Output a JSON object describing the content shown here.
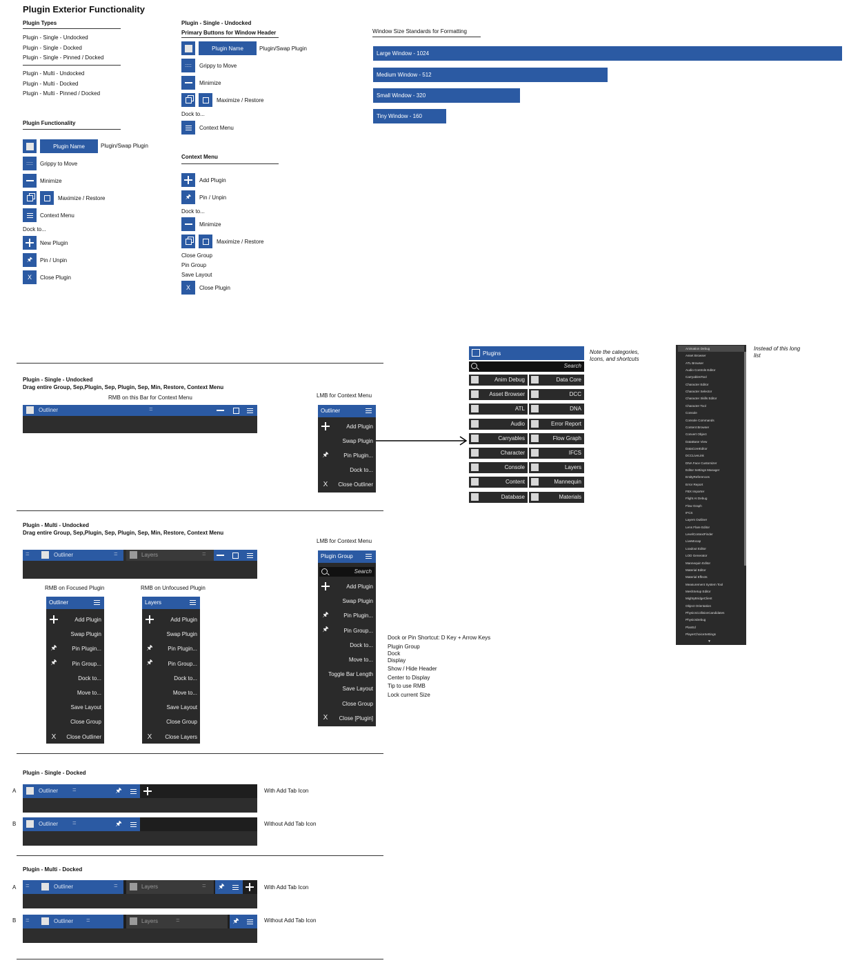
{
  "title": "Plugin Exterior Functionality",
  "plugin_types": {
    "heading": "Plugin Types",
    "group1": [
      "Plugin - Single - Undocked",
      "Plugin - Single - Docked",
      "Plugin - Single - Pinned / Docked"
    ],
    "group2": [
      "Plugin - Multi - Undocked",
      "Plugin - Multi - Docked",
      "Plugin - Multi - Pinned / Docked"
    ]
  },
  "functionality": {
    "heading": "Plugin Functionality",
    "plugin_name": "Plugin Name",
    "swap_label": "Plugin/Swap Plugin",
    "grippy": "Grippy to Move",
    "minimize": "Minimize",
    "maximize": "Maximize / Restore",
    "context_menu": "Context Menu",
    "dock_to": "Dock to...",
    "new_plugin": "New Plugin",
    "pin": "Pin / Unpin",
    "close_plugin": "Close Plugin",
    "x": "X"
  },
  "single_undocked_col": {
    "heading": "Plugin - Single - Undocked",
    "subheading": "Primary Buttons for Window Header",
    "plugin_name": "Plugin Name",
    "swap_label": "Plugin/Swap Plugin",
    "grippy": "Grippy to Move",
    "minimize": "Minimize",
    "maximize": "Maximize / Restore",
    "dock_to": "Dock to...",
    "context_menu": "Context Menu"
  },
  "context_menu_col": {
    "heading": "Context Menu",
    "add_plugin": "Add Plugin",
    "pin": "Pin / Unpin",
    "dock_to": "Dock to...",
    "minimize": "Minimize",
    "maximize": "Maximize / Restore",
    "close_group": "Close Group",
    "pin_group": "Pin Group",
    "save_layout": "Save Layout",
    "close_plugin": "Close Plugin",
    "x": "X"
  },
  "window_sizes": {
    "heading": "Window Size Standards for Formatting",
    "items": [
      {
        "label": "Large Window - 1024",
        "value": 1024
      },
      {
        "label": "Medium Window - 512",
        "value": 512
      },
      {
        "label": "Small Window - 320",
        "value": 320
      },
      {
        "label": "Tiny Window - 160",
        "value": 160
      }
    ]
  },
  "sec_single_undocked": {
    "title": "Plugin - Single - Undocked",
    "desc": "Drag entire Group, Sep,Plugin, Sep, Plugin, Sep, Min, Restore, Context Menu",
    "rmb_note": "RMB on this Bar for Context Menu",
    "header_name": "Outliner",
    "grip": ":::::",
    "lmb_note": "LMB for Context Menu",
    "menu_title": "Outliner",
    "menu_items": [
      "Add Plugin",
      "Swap Plugin",
      "Pin Plugin...",
      "Dock to...",
      "Close Outliner"
    ],
    "x": "X"
  },
  "plugins_panel": {
    "title": "Plugins",
    "search": "Search",
    "note": "Note the categories, Icons, and shortcuts",
    "left": [
      "Anim Debug",
      "Asset Browser",
      "ATL",
      "Audio",
      "Carryables",
      "Character",
      "Console",
      "Content",
      "Database"
    ],
    "right": [
      "Data Core",
      "DCC",
      "DNA",
      "Error Report",
      "Flow Graph",
      "IFCS",
      "Layers",
      "Mannequin",
      "Materials"
    ]
  },
  "long_list": {
    "note": "Instead of this long list",
    "items": [
      "Animation Debug",
      "Asset Browser",
      "ATL Browser",
      "Audio Controls Editor",
      "CarryablesTool",
      "Character Editor",
      "Character Selector",
      "Character Skills Editor",
      "Character Tool",
      "Console",
      "Console Commands",
      "Content Browser",
      "Convert Object",
      "DataBase View",
      "DataCoreEditor",
      "DCCLiveLink",
      "DNA Face Customizer",
      "Editor Settings Manager",
      "EntityReferences",
      "Error Report",
      "FBX Importer",
      "Flight AI Debug",
      "Flow Graph",
      "IFCS",
      "Layers Outliner",
      "Lens Flare Editor",
      "LevelContextFinder",
      "LiveMocap",
      "Loadout Editor",
      "LOD Generator",
      "Mannequin Editor",
      "Material Editor",
      "Material Effects",
      "Measurement System Tool",
      "MeshSetup Editor",
      "MightyBridgeClient",
      "Object Orientation",
      "PhysicsCollisionCandidates",
      "PhysicsDebug",
      "PlanEd",
      "PlayerChoiceSettings"
    ]
  },
  "sec_multi_undocked": {
    "title": "Plugin - Multi - Undocked",
    "desc": "Drag entire Group, Sep,Plugin, Sep, Plugin, Sep, Min, Restore, Context Menu",
    "tab1": "Outliner",
    "tab2": "Layers",
    "grip": ":::::",
    "rmb_focused": "RMB on Focused Plugin",
    "rmb_unfocused": "RMB on Unfocused Plugin",
    "menu_outliner": "Outliner",
    "menu_layers": "Layers",
    "items": [
      "Add Plugin",
      "Swap Plugin",
      "Pin Plugin...",
      "Pin Group...",
      "Dock to...",
      "Move to...",
      "Save Layout",
      "Close Group"
    ],
    "close_outliner": "Close Outliner",
    "close_layers": "Close Layers",
    "lmb_note": "LMB for Context Menu",
    "group_menu_title": "Plugin Group",
    "group_search": "Search",
    "group_items": [
      "Add Plugin",
      "Swap Plugin",
      "Pin Plugin...",
      "Pin Group...",
      "Dock to...",
      "Move to...",
      "Toggle Bar Length",
      "Save Layout",
      "Close Group",
      "Close [Plugin]"
    ],
    "x": "X",
    "dock_note": [
      "Dock or Pin Shortcut: D Key + Arrow Keys",
      "Plugin Group",
      "Dock",
      "Display",
      "Show / Hide Header",
      "Center to Display",
      "Tip to use RMB",
      "Lock current Size"
    ]
  },
  "sec_single_docked": {
    "title": "Plugin - Single - Docked",
    "a": "A",
    "b": "B",
    "name": "Outliner",
    "grip": ":::::",
    "with": "With Add Tab Icon",
    "without": "Without Add Tab Icon"
  },
  "sec_multi_docked": {
    "title": "Plugin - Multi - Docked",
    "a": "A",
    "b": "B",
    "tab1": "Outliner",
    "tab2": "Layers",
    "grip": ":::::",
    "with": "With Add Tab Icon",
    "without": "Without Add Tab Icon"
  },
  "colors": {
    "accent": "#2b5aa3",
    "panel": "#2d2d2d"
  },
  "icons": [
    "square-icon",
    "grip-icon",
    "minimize-icon",
    "maximize-icon",
    "restore-icon",
    "hamburger-icon",
    "plus-icon",
    "pin-icon",
    "close-icon",
    "search-icon",
    "arrow-right-icon"
  ]
}
